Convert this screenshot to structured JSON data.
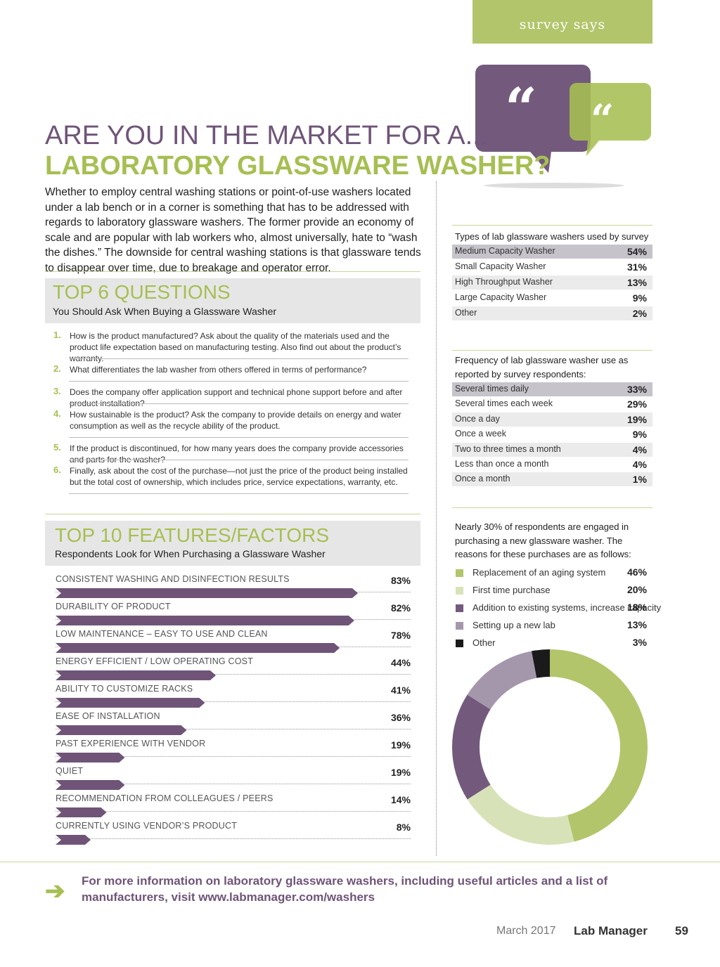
{
  "header": {
    "tab_label": "survey says"
  },
  "title": {
    "line1": "ARE YOU IN THE MARKET FOR A...",
    "line2": "LABORATORY GLASSWARE WASHER?"
  },
  "intro": "Whether to employ central washing stations or point-of-use washers located under a lab bench or in a corner is something that has to be addressed with regards to laboratory glassware washers. The former provide an economy of scale and are popular with lab workers who, almost universally, hate to “wash the dishes.” The downside for central washing stations is that glassware tends to disappear over time, due to breakage and operator error.",
  "questions": {
    "title": "TOP 6 QUESTIONS",
    "subtitle": "You Should Ask When Buying a Glassware Washer",
    "items": [
      {
        "num": "1.",
        "text": "How is the product manufactured? Ask about the quality of the materials used and the product life expectation based on manufacturing testing. Also find out about the product’s warranty."
      },
      {
        "num": "2.",
        "text": "What differentiates the lab washer from others offered in terms of performance?"
      },
      {
        "num": "3.",
        "text": "Does the company offer application support and technical phone support before and after product installation?"
      },
      {
        "num": "4.",
        "text": "How sustainable is the product? Ask the company to provide details on energy and water consumption as well as the recycle ability of the product."
      },
      {
        "num": "5.",
        "text": "If the product is discontinued, for how many years does the company provide accessories and parts for the washer?"
      },
      {
        "num": "6.",
        "text": "Finally, ask about the cost of the purchase—not just the price of the product being installed but the total cost of ownership, which includes price, service expectations, warranty, etc."
      }
    ]
  },
  "features": {
    "title": "TOP 10 FEATURES/FACTORS",
    "subtitle": "Respondents Look for When Purchasing a Glassware Washer",
    "items": [
      {
        "label": "CONSISTENT WASHING AND DISINFECTION RESULTS",
        "pct": "83%",
        "value": 83
      },
      {
        "label": "DURABILITY OF PRODUCT",
        "pct": "82%",
        "value": 82
      },
      {
        "label": "LOW MAINTENANCE – EASY TO USE AND CLEAN",
        "pct": "78%",
        "value": 78
      },
      {
        "label": "ENERGY EFFICIENT / LOW OPERATING COST",
        "pct": "44%",
        "value": 44
      },
      {
        "label": "ABILITY TO CUSTOMIZE RACKS",
        "pct": "41%",
        "value": 41
      },
      {
        "label": "EASE OF INSTALLATION",
        "pct": "36%",
        "value": 36
      },
      {
        "label": "PAST EXPERIENCE WITH VENDOR",
        "pct": "19%",
        "value": 19
      },
      {
        "label": "QUIET",
        "pct": "19%",
        "value": 19
      },
      {
        "label": "RECOMMENDATION FROM COLLEAGUES / PEERS",
        "pct": "14%",
        "value": 14
      },
      {
        "label": "CURRENTLY USING VENDOR’S PRODUCT",
        "pct": "8%",
        "value": 8
      }
    ]
  },
  "types_table": {
    "title": "Types of lab glassware washers used by survey respondents:",
    "rows": [
      {
        "label": "Medium Capacity Washer",
        "value": "54%"
      },
      {
        "label": "Small Capacity Washer",
        "value": "31%"
      },
      {
        "label": "High Throughput Washer",
        "value": "13%"
      },
      {
        "label": "Large Capacity Washer",
        "value": "9%"
      },
      {
        "label": "Other",
        "value": "2%"
      }
    ]
  },
  "frequency_table": {
    "title": "Frequency of lab glassware washer use as reported by survey respondents:",
    "rows": [
      {
        "label": "Several times daily",
        "value": "33%"
      },
      {
        "label": "Several times each week",
        "value": "29%"
      },
      {
        "label": "Once a day",
        "value": "19%"
      },
      {
        "label": "Once a week",
        "value": "9%"
      },
      {
        "label": "Two to three times a month",
        "value": "4%"
      },
      {
        "label": "Less than once a month",
        "value": "4%"
      },
      {
        "label": "Once a month",
        "value": "1%"
      }
    ]
  },
  "reasons": {
    "intro": "Nearly 30% of respondents are engaged in purchasing a new glassware washer. The reasons for these purchases are as follows:",
    "items": [
      {
        "label": "Replacement of an aging system",
        "pct": "46%",
        "value": 46,
        "color": "#b2c56a"
      },
      {
        "label": "First time purchase",
        "pct": "20%",
        "value": 20,
        "color": "#d8e2b8"
      },
      {
        "label": "Addition to existing systems, increase capacity",
        "pct": "18%",
        "value": 18,
        "color": "#735a7c"
      },
      {
        "label": "Setting up a new lab",
        "pct": "13%",
        "value": 13,
        "color": "#a597ab"
      },
      {
        "label": "Other",
        "pct": "3%",
        "value": 3,
        "color": "#1a1a1a"
      }
    ]
  },
  "footer": {
    "arrow_icon": "arrow-right-icon",
    "text": "For more information on laboratory glassware washers, including useful articles and a list of manufacturers, visit www.labmanager.com/washers",
    "date": "March 2017",
    "magazine": "Lab Manager",
    "page": "59"
  },
  "colors": {
    "purple": "#6f5478",
    "green": "#a6bf52",
    "tab_green": "#b2c56a"
  }
}
